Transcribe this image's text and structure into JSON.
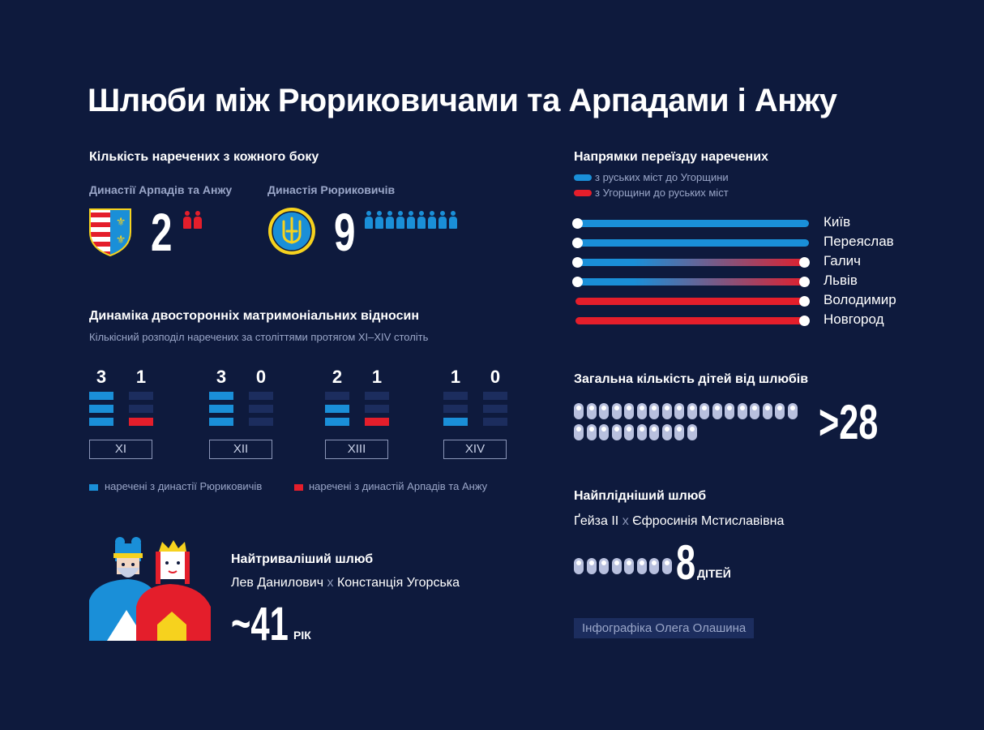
{
  "title": "Шлюби між Рюриковичами та Арпадами і Анжу",
  "brides_count": {
    "heading": "Кількість наречених з кожного боку",
    "arpad": {
      "label": "Династії Арпадів та Анжу",
      "count": "2",
      "value": 2,
      "color": "#e41e2b",
      "shield_icon": "arpad-anjou-shield-icon"
    },
    "rurik": {
      "label": "Династія Рюриковичів",
      "count": "9",
      "value": 9,
      "color": "#1a8fd8",
      "emblem_icon": "trident-emblem-icon"
    }
  },
  "dynamics": {
    "heading": "Динаміка двосторонніх матримоніальних відносин",
    "subheading": "Кількісний розподіл наречених за століттями протягом XI–XIV століть",
    "chart_data": {
      "type": "bar",
      "title": "Динаміка двосторонніх матримоніальних відносин",
      "categories": [
        "XI",
        "XII",
        "XIII",
        "XIV"
      ],
      "ylim": [
        0,
        3
      ],
      "series": [
        {
          "name": "наречені з династії Рюриковичів",
          "values": [
            3,
            3,
            2,
            1
          ],
          "labels": [
            "3",
            "3",
            "2",
            "1"
          ],
          "color": "#1a8fd8"
        },
        {
          "name": "наречені з династій Арпадів та Анжу",
          "values": [
            1,
            0,
            1,
            0
          ],
          "labels": [
            "1",
            "0",
            "1",
            "0"
          ],
          "color": "#e41e2b"
        }
      ],
      "empty_color": "#1c2d5e"
    },
    "legend": {
      "rurik": "наречені з династії Рюриковичів",
      "arpad": "наречені з династій Арпадів та Анжу"
    }
  },
  "longest": {
    "heading": "Найтриваліший шлюб",
    "husband": "Лев Данилович",
    "x": "х",
    "wife": "Констанція Угорська",
    "value": "~41",
    "unit": "РІК"
  },
  "directions": {
    "heading": "Напрямки переїзду наречених",
    "legend_blue": "з руських міст до Угорщини",
    "legend_red": "з Угорщини до руських міст",
    "blue": "#1a8fd8",
    "red": "#e41e2b",
    "cities": [
      {
        "name": "Київ",
        "to_hungary": true,
        "to_rus": false
      },
      {
        "name": "Переяслав",
        "to_hungary": true,
        "to_rus": false
      },
      {
        "name": "Галич",
        "to_hungary": true,
        "to_rus": true
      },
      {
        "name": "Львів",
        "to_hungary": true,
        "to_rus": true
      },
      {
        "name": "Володимир",
        "to_hungary": false,
        "to_rus": true
      },
      {
        "name": "Новгород",
        "to_hungary": false,
        "to_rus": true
      }
    ]
  },
  "children": {
    "heading": "Загальна кількість дітей від шлюбів",
    "value": ">28",
    "count": 28
  },
  "fertile": {
    "heading": "Найплідніший шлюб",
    "husband": "Ґейза ІІ",
    "x": "х",
    "wife": "Єфросинія Мстиславівна",
    "value": "8",
    "unit": "ДІТЕЙ",
    "count": 8
  },
  "credit": "Інфографіка Олега Олашина"
}
